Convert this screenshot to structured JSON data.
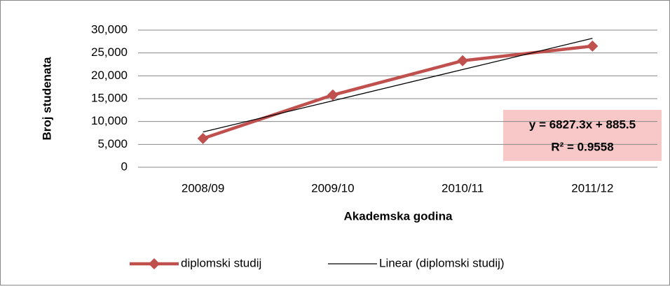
{
  "chart_data": {
    "type": "line",
    "categories": [
      "2008/09",
      "2009/10",
      "2010/11",
      "2011/12"
    ],
    "series": [
      {
        "name": "diplomski studij",
        "color": "#c0504d",
        "values": [
          6300,
          15800,
          23300,
          26500
        ]
      },
      {
        "name": "Linear (diplomski studij)",
        "color": "#000000",
        "values": [
          7712.8,
          14540.1,
          21367.4,
          28194.7
        ]
      }
    ],
    "ylim": [
      0,
      30000
    ],
    "yticks": [
      0,
      {
        "value": 5000,
        "label": "5,000"
      },
      {
        "value": 10000,
        "label": "10,000"
      },
      {
        "value": 15000,
        "label": "15,000"
      },
      {
        "value": 20000,
        "label": "20,000"
      },
      {
        "value": 25000,
        "label": "25,000"
      },
      {
        "value": 30000,
        "label": "30,000"
      }
    ],
    "grid": true,
    "xlabel": "Akademska godina",
    "ylabel": "Broj studenata",
    "annotations": [
      "y = 6827.3x + 885.5",
      "R² = 0.9558"
    ],
    "legend": "bottom"
  }
}
